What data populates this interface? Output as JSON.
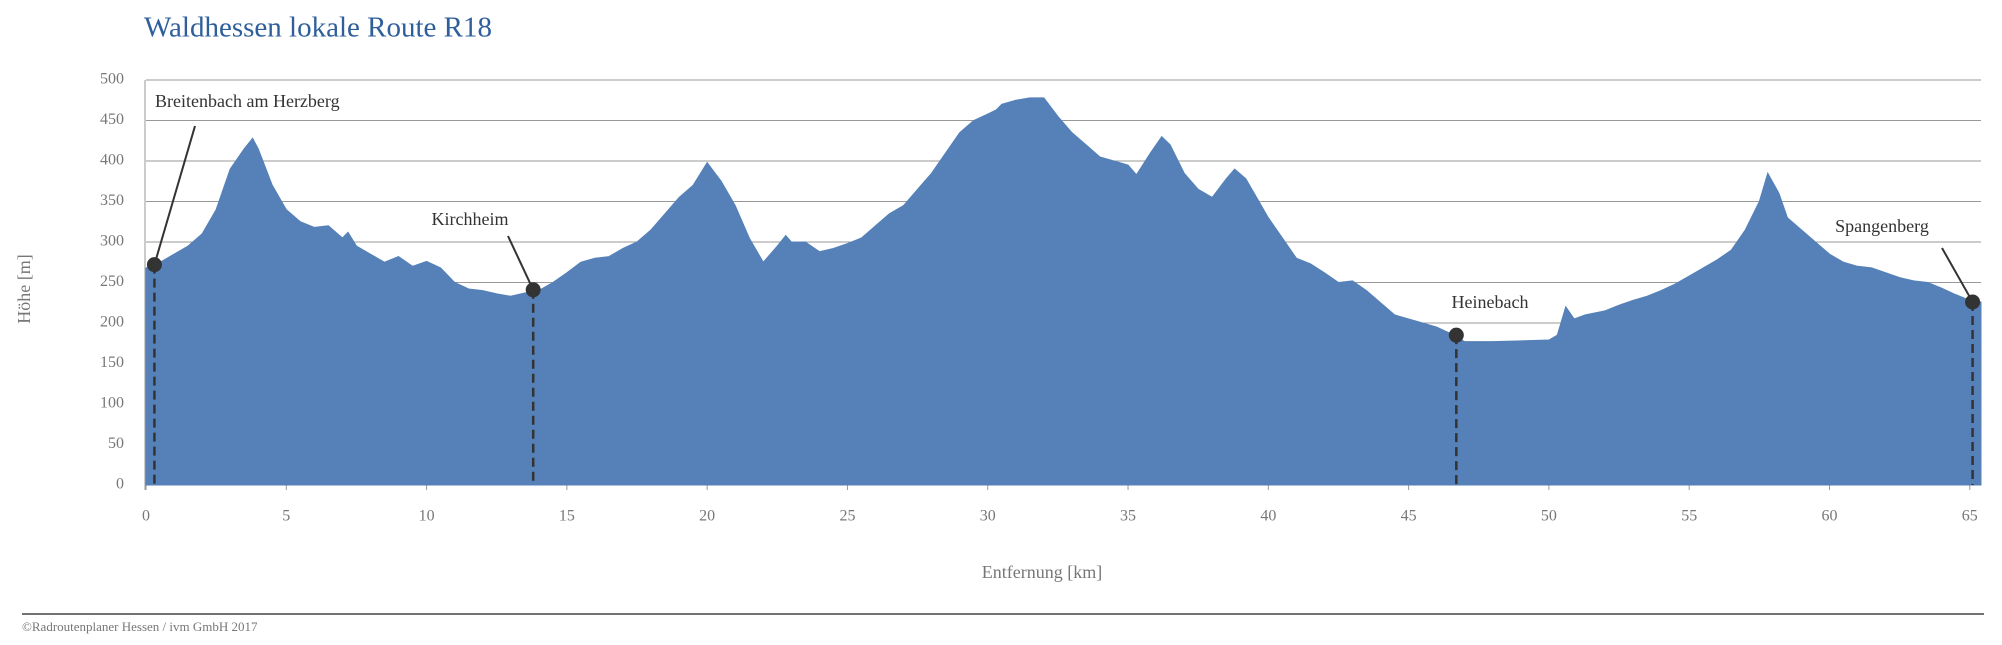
{
  "chart_data": {
    "type": "area",
    "title": "Waldhessen lokale Route R18",
    "x_label": "Entfernung [km]",
    "y_label": "Höhe [m]",
    "footer": "©Radroutenplaner Hessen / ivm GmbH 2017",
    "color": "#5581b8",
    "grid": true,
    "xlim": [
      0,
      65.4
    ],
    "ylim": [
      0,
      500
    ],
    "xticks": [
      0,
      5,
      10,
      15,
      20,
      25,
      30,
      35,
      40,
      45,
      50,
      55,
      60,
      65
    ],
    "yticks": [
      0,
      50,
      100,
      150,
      200,
      250,
      300,
      350,
      400,
      450,
      500
    ],
    "x": [
      0,
      0.5,
      1,
      1.5,
      2,
      2.5,
      3,
      3.5,
      3.8,
      4,
      4.5,
      5,
      5.5,
      6,
      6.5,
      7,
      7.2,
      7.5,
      8,
      8.5,
      9,
      9.5,
      10,
      10.5,
      11,
      11.5,
      12,
      12.5,
      13,
      13.5,
      14,
      14.5,
      15,
      15.5,
      16,
      16.5,
      17,
      17.5,
      18,
      18.5,
      19,
      19.5,
      20,
      20.5,
      21,
      21.5,
      22,
      22.5,
      22.8,
      23,
      23.5,
      24,
      24.5,
      25,
      25.5,
      26,
      26.5,
      27,
      27.5,
      28,
      28.5,
      29,
      29.5,
      30,
      30.3,
      30.5,
      31,
      31.5,
      32,
      32.5,
      33,
      33.5,
      34,
      34.5,
      35,
      35.3,
      35.8,
      36.2,
      36.5,
      37,
      37.5,
      38,
      38.5,
      38.8,
      39.2,
      39.5,
      40,
      40.5,
      41,
      41.5,
      42,
      42.5,
      43,
      43.5,
      44,
      44.5,
      45,
      45.5,
      46,
      46.5,
      47,
      48,
      49,
      50,
      50.3,
      50.6,
      50.9,
      51.3,
      52,
      52.5,
      53,
      53.5,
      54,
      54.5,
      55,
      55.5,
      56,
      56.5,
      57,
      57.5,
      57.8,
      58.2,
      58.5,
      59,
      59.5,
      60,
      60.5,
      61,
      61.5,
      62,
      62.5,
      63,
      63.5,
      64,
      64.5,
      65,
      65.4
    ],
    "values": [
      268,
      275,
      285,
      295,
      310,
      340,
      390,
      415,
      428,
      415,
      370,
      340,
      325,
      318,
      320,
      305,
      312,
      295,
      285,
      275,
      282,
      270,
      276,
      268,
      250,
      242,
      240,
      236,
      233,
      237,
      240,
      250,
      262,
      275,
      280,
      282,
      292,
      300,
      315,
      335,
      355,
      370,
      398,
      375,
      345,
      305,
      275,
      295,
      308,
      300,
      300,
      288,
      292,
      298,
      305,
      320,
      335,
      345,
      365,
      385,
      410,
      435,
      450,
      458,
      463,
      470,
      475,
      478,
      478,
      455,
      435,
      420,
      405,
      400,
      395,
      383,
      410,
      430,
      420,
      385,
      365,
      355,
      378,
      390,
      378,
      360,
      330,
      305,
      280,
      273,
      262,
      250,
      252,
      240,
      225,
      210,
      205,
      200,
      195,
      187,
      177,
      177,
      178,
      179,
      185,
      220,
      205,
      210,
      215,
      222,
      228,
      233,
      240,
      248,
      258,
      268,
      278,
      290,
      315,
      350,
      385,
      360,
      330,
      315,
      300,
      285,
      275,
      270,
      268,
      262,
      256,
      252,
      250,
      243,
      235,
      228,
      226
    ],
    "annotations": [
      {
        "label": "Breitenbach am Herzberg",
        "x": 0.3,
        "y": 272
      },
      {
        "label": "Kirchheim",
        "x": 13.8,
        "y": 241
      },
      {
        "label": "Heinebach",
        "x": 46.7,
        "y": 185
      },
      {
        "label": "Spangenberg",
        "x": 65.1,
        "y": 226
      }
    ]
  }
}
